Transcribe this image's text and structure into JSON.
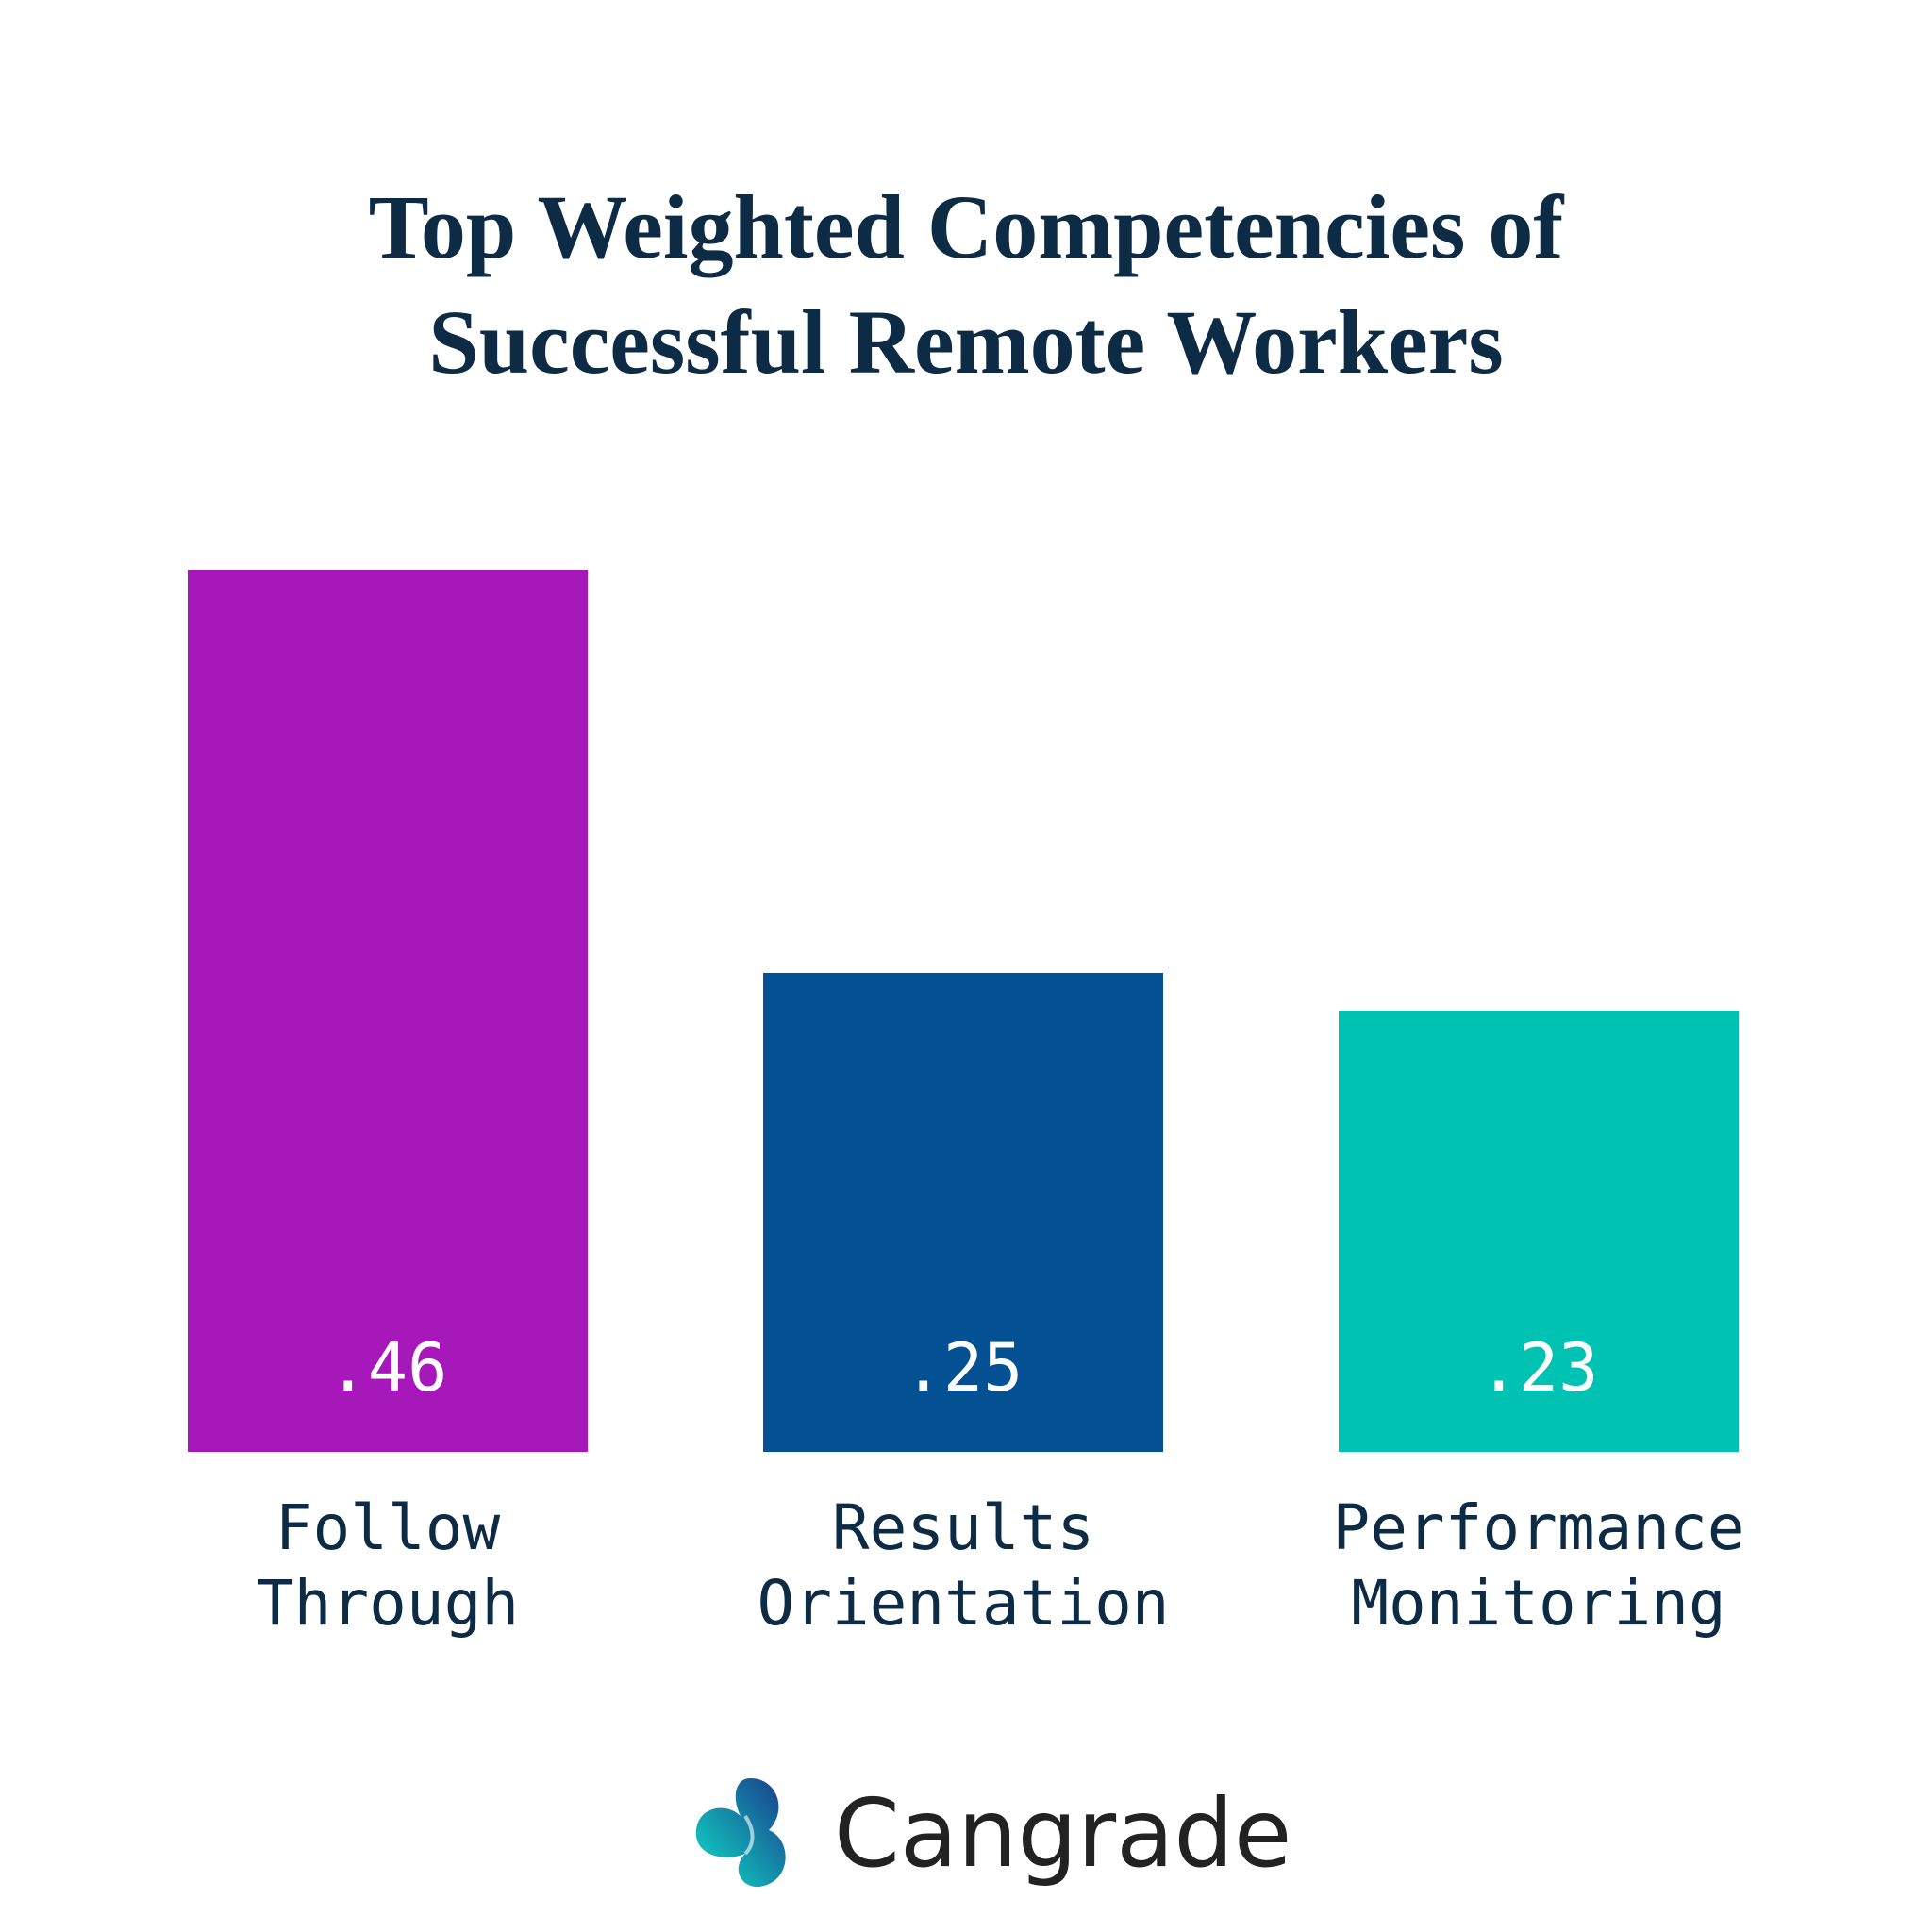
{
  "chart_data": {
    "type": "bar",
    "title": "Top Weighted Competencies of Successful Remote Workers",
    "categories": [
      "Follow Through",
      "Results Orientation",
      "Performance Monitoring"
    ],
    "values": [
      0.46,
      0.25,
      0.23
    ],
    "value_labels": [
      ".46",
      ".25",
      ".23"
    ],
    "colors": [
      "#a718bb",
      "#035192",
      "#00c2b2"
    ]
  },
  "logo": "Cangrade"
}
